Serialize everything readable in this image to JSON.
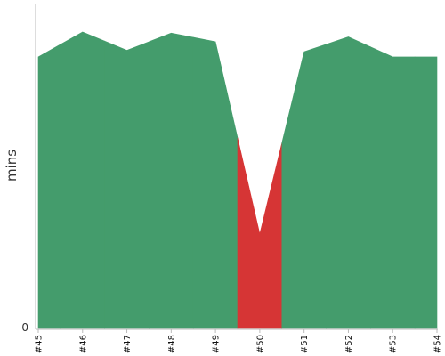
{
  "chart_data": {
    "type": "area",
    "title": "",
    "xlabel": "",
    "ylabel": "mins",
    "categories": [
      "#45",
      "#46",
      "#47",
      "#48",
      "#49",
      "#50",
      "#51",
      "#52",
      "#53",
      "#54"
    ],
    "values": [
      9.47,
      10.34,
      9.7,
      10.3,
      10.0,
      3.3,
      9.65,
      10.17,
      9.47,
      9.47
    ],
    "status": [
      "success",
      "success",
      "success",
      "success",
      "success",
      "failure",
      "success",
      "success",
      "success",
      "success"
    ],
    "ylim": [
      0,
      11.3
    ],
    "y_ticks": [
      "0"
    ],
    "grid": false,
    "legend": "none",
    "colors": {
      "success": "#449c6c",
      "failure": "#d63535",
      "axis": "#bbbbbb"
    }
  }
}
